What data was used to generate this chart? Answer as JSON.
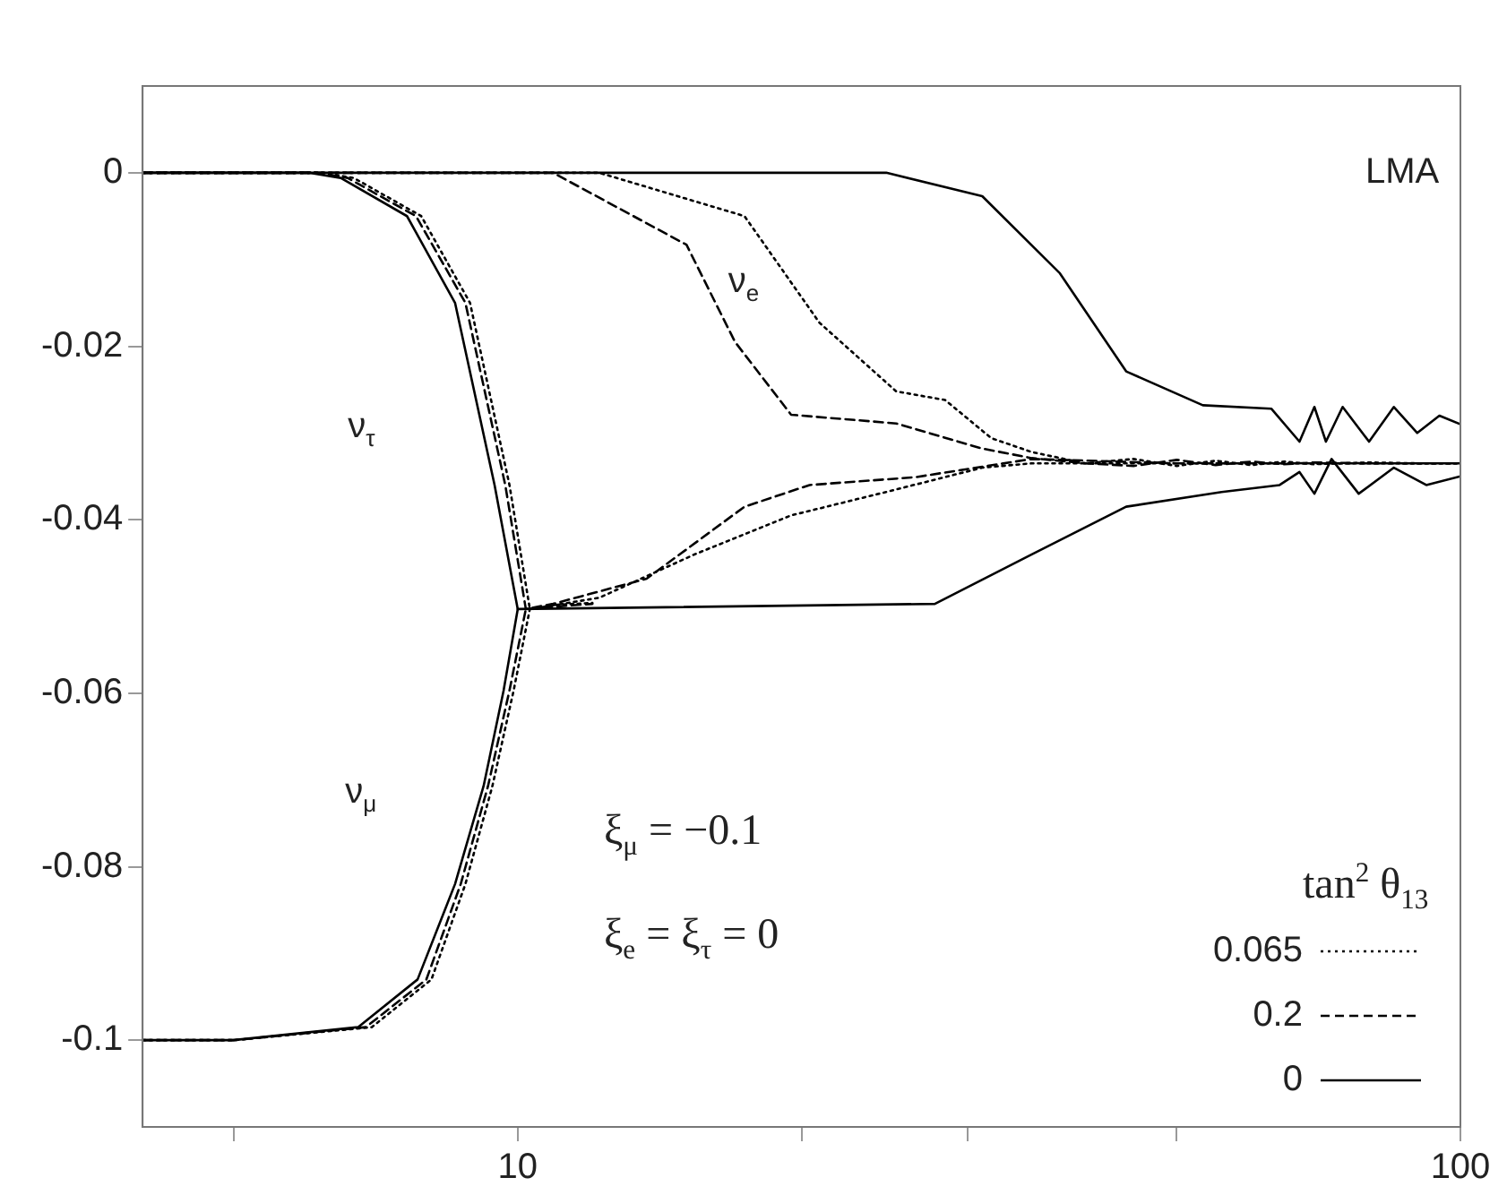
{
  "chart_data": {
    "type": "line",
    "xlim": [
      4,
      100
    ],
    "ylim": [
      -0.11,
      0.01
    ],
    "log": "x",
    "xticks": [
      {
        "value": 5,
        "label": null
      },
      10,
      {
        "value": 20,
        "label": null
      },
      {
        "value": 30,
        "label": null
      },
      {
        "value": 50,
        "label": null
      },
      {
        "value": 100,
        "label": "100"
      }
    ],
    "yticks": [
      0,
      -0.02,
      -0.04,
      -0.06,
      -0.08,
      -0.1
    ],
    "grid": false,
    "marker": "none",
    "legend": "bottom right",
    "legend_title": "tan$^{2}$ θ$_{13}$",
    "annotations": [
      "LMA",
      "ξ$_{μ}$ = −0.1",
      "ξ$_{e}$ = ξ$_{τ}$ = 0",
      "ν$_{e}$",
      "ν$_{τ}$",
      "ν$_{μ}$"
    ],
    "series": [
      {
        "name": "0.065",
        "color": "#000000",
        "line_style": "dotted",
        "x": [
          4,
          10,
          12.2,
          17.4,
          20.9,
          25.2,
          28.4,
          31.8,
          35.1,
          40,
          45,
          50,
          55,
          60,
          65,
          70,
          80,
          90,
          100
        ],
        "values": [
          0,
          0,
          0,
          -0.005,
          -0.0173,
          -0.0252,
          -0.0262,
          -0.0306,
          -0.0322,
          -0.0335,
          -0.033,
          -0.0338,
          -0.0332,
          -0.0337,
          -0.0333,
          -0.0336,
          -0.0334,
          -0.0335,
          -0.0335
        ]
      },
      {
        "name": "0.2",
        "color": "#000000",
        "line_style": "dashed",
        "x": [
          4,
          10,
          10.9,
          15.1,
          17,
          19.5,
          25.2,
          31.1,
          35.1,
          40,
          45,
          50,
          55,
          60,
          65,
          70,
          80,
          90,
          100
        ],
        "values": [
          0,
          0,
          0,
          -0.0083,
          -0.0195,
          -0.0279,
          -0.0289,
          -0.0318,
          -0.0329,
          -0.0335,
          -0.0338,
          -0.0331,
          -0.0337,
          -0.0333,
          -0.0336,
          -0.0334,
          -0.0335,
          -0.0335,
          -0.0335
        ]
      },
      {
        "name": "0",
        "color": "#000000",
        "line_style": "solid",
        "x": [
          4,
          20,
          24.6,
          31.1,
          37.6,
          44.2,
          53.3,
          63,
          67.5,
          70,
          72,
          75,
          80,
          85,
          90,
          95,
          100
        ],
        "values": [
          0,
          0,
          0,
          -0.0027,
          -0.0116,
          -0.0229,
          -0.0268,
          -0.0272,
          -0.031,
          -0.027,
          -0.031,
          -0.027,
          -0.031,
          -0.027,
          -0.03,
          -0.028,
          -0.029
        ]
      },
      {
        "color": "#000000",
        "line_style": "dotted",
        "x": [
          4,
          6.2,
          6.7,
          7.9,
          8.9,
          9.8,
          10.3,
          12.2,
          15.4,
          19.5,
          24.6,
          31.1,
          35.1,
          50,
          70,
          100
        ],
        "values": [
          0,
          0,
          -0.0006,
          -0.005,
          -0.015,
          -0.036,
          -0.0503,
          -0.049,
          -0.044,
          -0.0395,
          -0.0368,
          -0.034,
          -0.0335,
          -0.0335,
          -0.0335,
          -0.0335
        ]
      },
      {
        "color": "#000000",
        "line_style": "dashed",
        "x": [
          4,
          6.1,
          6.6,
          7.8,
          8.8,
          9.7,
          10.2,
          10.9,
          13.7,
          17.4,
          20.4,
          26.4,
          35.1,
          50,
          70,
          100
        ],
        "values": [
          0,
          0,
          -0.0006,
          -0.005,
          -0.015,
          -0.036,
          -0.0503,
          -0.0497,
          -0.0468,
          -0.0385,
          -0.036,
          -0.0351,
          -0.033,
          -0.0335,
          -0.0335,
          -0.0335
        ]
      },
      {
        "color": "#000000",
        "line_style": "solid",
        "x": [
          4,
          6,
          6.49,
          7.63,
          8.58,
          9.45,
          10,
          27.7,
          35.1,
          44.2,
          55.8,
          64.3,
          67.5,
          70,
          73,
          78,
          85,
          92,
          100
        ],
        "values": [
          0,
          0,
          -0.0006,
          -0.005,
          -0.015,
          -0.036,
          -0.0503,
          -0.0497,
          -0.044,
          -0.0385,
          -0.0368,
          -0.036,
          -0.0345,
          -0.037,
          -0.033,
          -0.037,
          -0.034,
          -0.036,
          -0.035
        ]
      },
      {
        "color": "#000000",
        "line_style": "dotted",
        "x": [
          4,
          5,
          7,
          8.1,
          8.8,
          9.4,
          9.9,
          10.3,
          11,
          12
        ],
        "values": [
          -0.1,
          -0.1,
          -0.0985,
          -0.093,
          -0.082,
          -0.0707,
          -0.0597,
          -0.0503,
          -0.0498,
          -0.0496
        ]
      },
      {
        "color": "#000000",
        "line_style": "dashed",
        "x": [
          4,
          5,
          6.9,
          8,
          8.7,
          9.3,
          9.8,
          10.2,
          11,
          12
        ],
        "values": [
          -0.1,
          -0.1,
          -0.0985,
          -0.093,
          -0.082,
          -0.0707,
          -0.0597,
          -0.0503,
          -0.05,
          -0.0497
        ]
      },
      {
        "color": "#000000",
        "line_style": "solid",
        "x": [
          4,
          4.99,
          6.77,
          7.83,
          8.58,
          9.2,
          9.66,
          10
        ],
        "values": [
          -0.1,
          -0.1,
          -0.0985,
          -0.093,
          -0.082,
          -0.0707,
          -0.0597,
          -0.0503
        ]
      }
    ]
  }
}
